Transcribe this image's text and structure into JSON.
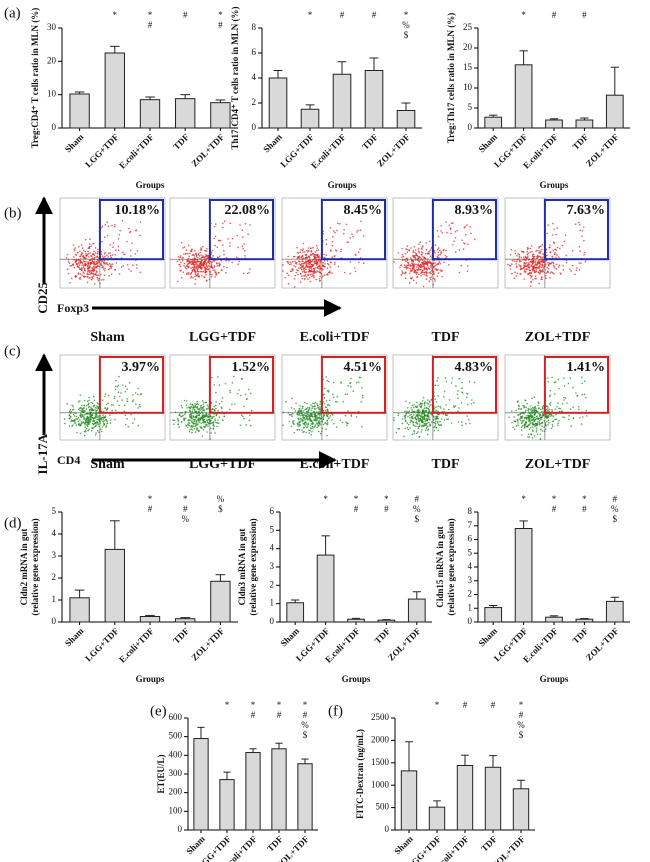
{
  "panel_labels": [
    "(a)",
    "(b)",
    "(c)",
    "(d)",
    "(e)",
    "(f)"
  ],
  "chart_data": [
    {
      "type": "bar",
      "ylabel": [
        "Treg:CD4⁺ T cells ratio in MLN (%)"
      ],
      "xlabel": "Groups",
      "color": "#d9d9d9",
      "categories": [
        "Sham",
        "LGG+TDF",
        "E.coli+TDF",
        "TDF",
        "ZOL+TDF"
      ],
      "values": [
        10.2,
        22.5,
        8.5,
        8.8,
        7.6
      ],
      "errors": [
        0.6,
        2,
        0.8,
        1.2,
        0.8
      ],
      "annotations": [
        [],
        [
          "*"
        ],
        [
          "*",
          "#"
        ],
        [
          "#"
        ],
        [
          "*",
          "#"
        ]
      ],
      "ylim": [
        0,
        30
      ],
      "yticks": [
        0,
        10,
        20,
        30
      ]
    },
    {
      "type": "bar",
      "ylabel": [
        "Th17:CD4⁺ T cells ratio in MLN (%)"
      ],
      "xlabel": "Groups",
      "color": "#d9d9d9",
      "categories": [
        "Sham",
        "LGG+TDF",
        "E.coli+TDF",
        "TDF",
        "ZOL+TDF"
      ],
      "values": [
        4.0,
        1.5,
        4.3,
        4.6,
        1.4
      ],
      "errors": [
        0.6,
        0.35,
        1.0,
        1.0,
        0.6
      ],
      "annotations": [
        [],
        [
          "*"
        ],
        [
          "#"
        ],
        [
          "#"
        ],
        [
          "*",
          "%",
          "$"
        ]
      ],
      "ylim": [
        0,
        8
      ],
      "yticks": [
        0,
        2,
        4,
        6,
        8
      ]
    },
    {
      "type": "bar",
      "ylabel": [
        "Treg:Th17 cells ratio in MLN (%)"
      ],
      "xlabel": "Groups",
      "color": "#d9d9d9",
      "categories": [
        "Sham",
        "LGG+TDF",
        "E.coli+TDF",
        "TDF",
        "ZOL+TDF"
      ],
      "values": [
        2.7,
        15.8,
        2.0,
        2.0,
        8.2
      ],
      "errors": [
        0.5,
        3.5,
        0.3,
        0.5,
        7
      ],
      "annotations": [
        [],
        [
          "*"
        ],
        [
          "#"
        ],
        [
          "#"
        ],
        []
      ],
      "ylim": [
        0,
        25
      ],
      "yticks": [
        0,
        5,
        10,
        15,
        20,
        25
      ]
    },
    {
      "type": "bar",
      "ylabel": [
        "Cldn2 mRNA in gut",
        "(relative gene expression)"
      ],
      "xlabel": "Groups",
      "color": "#d9d9d9",
      "categories": [
        "Sham",
        "LGG+TDF",
        "E.coli+TDF",
        "TDF",
        "ZOL+TDF"
      ],
      "values": [
        1.1,
        3.3,
        0.25,
        0.15,
        1.85
      ],
      "errors": [
        0.35,
        1.3,
        0.05,
        0.05,
        0.3
      ],
      "annotations": [
        [],
        [],
        [
          "*",
          "#"
        ],
        [
          "*",
          "#",
          "%"
        ],
        [
          "%",
          "$"
        ]
      ],
      "ylim": [
        0,
        5
      ],
      "yticks": [
        0,
        1,
        2,
        3,
        4,
        5
      ]
    },
    {
      "type": "bar",
      "ylabel": [
        "Cldn3 mRNA in gut",
        "(relative gene expression)"
      ],
      "xlabel": "Groups",
      "color": "#d9d9d9",
      "categories": [
        "Sham",
        "LGG+TDF",
        "E.coli+TDF",
        "TDF",
        "ZOL+TDF"
      ],
      "values": [
        1.05,
        3.65,
        0.15,
        0.1,
        1.25
      ],
      "errors": [
        0.15,
        1.05,
        0.05,
        0.03,
        0.4
      ],
      "annotations": [
        [],
        [
          "*"
        ],
        [
          "*",
          "#"
        ],
        [
          "*",
          "#"
        ],
        [
          "#",
          "%",
          "$"
        ]
      ],
      "ylim": [
        0,
        6
      ],
      "yticks": [
        0,
        1,
        2,
        3,
        4,
        5,
        6
      ]
    },
    {
      "type": "bar",
      "ylabel": [
        "Cldn15 mRNA in gut",
        "(relative gene expression)"
      ],
      "xlabel": "Groups",
      "color": "#d9d9d9",
      "categories": [
        "Sham",
        "LGG+TDF",
        "E.coli+TDF",
        "TDF",
        "ZOL+TDF"
      ],
      "values": [
        1.05,
        6.8,
        0.35,
        0.2,
        1.5
      ],
      "errors": [
        0.15,
        0.55,
        0.1,
        0.05,
        0.3
      ],
      "annotations": [
        [],
        [
          "*"
        ],
        [
          "*",
          "#"
        ],
        [
          "*",
          "#"
        ],
        [
          "#",
          "%",
          "$"
        ]
      ],
      "ylim": [
        0,
        8
      ],
      "yticks": [
        0,
        1,
        2,
        3,
        4,
        5,
        6,
        7,
        8
      ]
    },
    {
      "type": "bar",
      "ylabel": [
        "ET(EU/L)"
      ],
      "xlabel": "Groups",
      "color": "#d9d9d9",
      "categories": [
        "Sham",
        "LGG+TDF",
        "E.coli+TDF",
        "TDF",
        "ZOL+TDF"
      ],
      "values": [
        490,
        270,
        415,
        435,
        355
      ],
      "errors": [
        60,
        40,
        20,
        30,
        25
      ],
      "annotations": [
        [],
        [
          "*"
        ],
        [
          "*",
          "#"
        ],
        [
          "*",
          "#"
        ],
        [
          "*",
          "#",
          "%",
          "$"
        ]
      ],
      "ylim": [
        0,
        600
      ],
      "yticks": [
        0,
        100,
        200,
        300,
        400,
        500,
        600
      ]
    },
    {
      "type": "bar",
      "ylabel": [
        "FITC-Dextran (ng/mL)"
      ],
      "xlabel": "Groups",
      "color": "#d9d9d9",
      "categories": [
        "Sham",
        "LGG+TDF",
        "E.coli+TDF",
        "TDF",
        "ZOL+TDF"
      ],
      "values": [
        1320,
        510,
        1440,
        1400,
        920
      ],
      "errors": [
        650,
        140,
        230,
        260,
        190
      ],
      "annotations": [
        [],
        [
          "*"
        ],
        [
          "#"
        ],
        [
          "#"
        ],
        [
          "*",
          "#",
          "%",
          "$"
        ]
      ],
      "ylim": [
        0,
        2500
      ],
      "yticks": [
        0,
        500,
        1000,
        1500,
        2000,
        2500
      ]
    }
  ],
  "flow": [
    {
      "marker_y": "CD25",
      "marker_x": "Foxp3",
      "gate_color": "#1f2ea8",
      "dot_color": "#e02020",
      "groups": [
        "Sham",
        "LGG+TDF",
        "E.coli+TDF",
        "TDF",
        "ZOL+TDF"
      ],
      "percents": [
        "10.18%",
        "22.08%",
        "8.45%",
        "8.93%",
        "7.63%"
      ]
    },
    {
      "marker_y": "IL-17A",
      "marker_x": "CD4",
      "gate_color": "#d42020",
      "dot_color": "#1e8a1e",
      "groups": [
        "Sham",
        "LGG+TDF",
        "E.coli+TDF",
        "TDF",
        "ZOL+TDF"
      ],
      "percents": [
        "3.97%",
        "1.52%",
        "4.51%",
        "4.83%",
        "1.41%"
      ]
    }
  ]
}
